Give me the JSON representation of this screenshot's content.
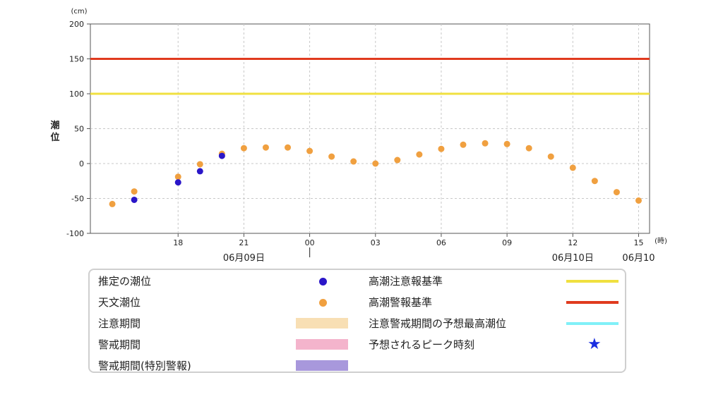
{
  "chart_data": {
    "type": "scatter",
    "title": "",
    "xlabel": "",
    "ylabel": "潮位",
    "y_unit": "(cm)",
    "x_unit": "(時)",
    "ylim": [
      -100,
      200
    ],
    "yticks": [
      -100,
      -50,
      0,
      50,
      100,
      150,
      200
    ],
    "grid": true,
    "xticks": [
      {
        "time": "2024-06-09 18:00",
        "label": "18"
      },
      {
        "time": "2024-06-09 21:00",
        "label": "21"
      },
      {
        "time": "2024-06-10 00:00",
        "label": "00"
      },
      {
        "time": "2024-06-10 03:00",
        "label": "03"
      },
      {
        "time": "2024-06-10 06:00",
        "label": "06"
      },
      {
        "time": "2024-06-10 09:00",
        "label": "09"
      },
      {
        "time": "2024-06-10 12:00",
        "label": "12"
      },
      {
        "time": "2024-06-10 15:00",
        "label": "15"
      }
    ],
    "date_labels": [
      {
        "time": "2024-06-09 21:00",
        "label": "06月09日"
      },
      {
        "time": "2024-06-10 12:00",
        "label": "06月10日"
      },
      {
        "time": "2024-06-10 15:00",
        "label": "06月10"
      }
    ],
    "date_boundary": "2024-06-10 00:00",
    "x_start": "2024-06-09 14:00",
    "x_end": "2024-06-10 15:30",
    "reference_lines": [
      {
        "name": "高潮警報基準",
        "value": 150,
        "color": "#e03a1e"
      },
      {
        "name": "高潮注意報基準",
        "value": 100,
        "color": "#f0e040"
      }
    ],
    "series": [
      {
        "name": "推定の潮位",
        "color": "#2a16c8",
        "x": [
          "2024-06-09 16:00",
          "2024-06-09 18:00",
          "2024-06-09 19:00",
          "2024-06-09 20:00"
        ],
        "values": [
          -52,
          -27,
          -11,
          11
        ]
      },
      {
        "name": "天文潮位",
        "color": "#f0a040",
        "x": [
          "2024-06-09 15:00",
          "2024-06-09 16:00",
          "2024-06-09 18:00",
          "2024-06-09 19:00",
          "2024-06-09 20:00",
          "2024-06-09 21:00",
          "2024-06-09 22:00",
          "2024-06-09 23:00",
          "2024-06-10 00:00",
          "2024-06-10 01:00",
          "2024-06-10 02:00",
          "2024-06-10 03:00",
          "2024-06-10 04:00",
          "2024-06-10 05:00",
          "2024-06-10 06:00",
          "2024-06-10 07:00",
          "2024-06-10 08:00",
          "2024-06-10 09:00",
          "2024-06-10 10:00",
          "2024-06-10 11:00",
          "2024-06-10 12:00",
          "2024-06-10 13:00",
          "2024-06-10 14:00",
          "2024-06-10 15:00"
        ],
        "values": [
          -58,
          -40,
          -19,
          -1,
          14,
          22,
          23,
          23,
          18,
          10,
          3,
          0,
          5,
          13,
          21,
          27,
          29,
          28,
          22,
          10,
          -6,
          -25,
          -41,
          -53
        ]
      }
    ]
  },
  "legend": {
    "items": [
      {
        "label": "推定の潮位",
        "symbol": "dot",
        "color": "#2a16c8"
      },
      {
        "label": "天文潮位",
        "symbol": "dot",
        "color": "#f0a040"
      },
      {
        "label": "注意期間",
        "symbol": "band",
        "color": "#f8dfb4"
      },
      {
        "label": "警戒期間",
        "symbol": "band",
        "color": "#f4b4cc"
      },
      {
        "label": "警戒期間(特別警報)",
        "symbol": "band",
        "color": "#a898dc"
      },
      {
        "label": "高潮注意報基準",
        "symbol": "line",
        "color": "#f0e040"
      },
      {
        "label": "高潮警報基準",
        "symbol": "line",
        "color": "#e03a1e"
      },
      {
        "label": "注意警戒期間の予想最高潮位",
        "symbol": "line",
        "color": "#80f0f8"
      },
      {
        "label": "予想されるピーク時刻",
        "symbol": "star",
        "color": "#1a2ee0"
      }
    ]
  }
}
